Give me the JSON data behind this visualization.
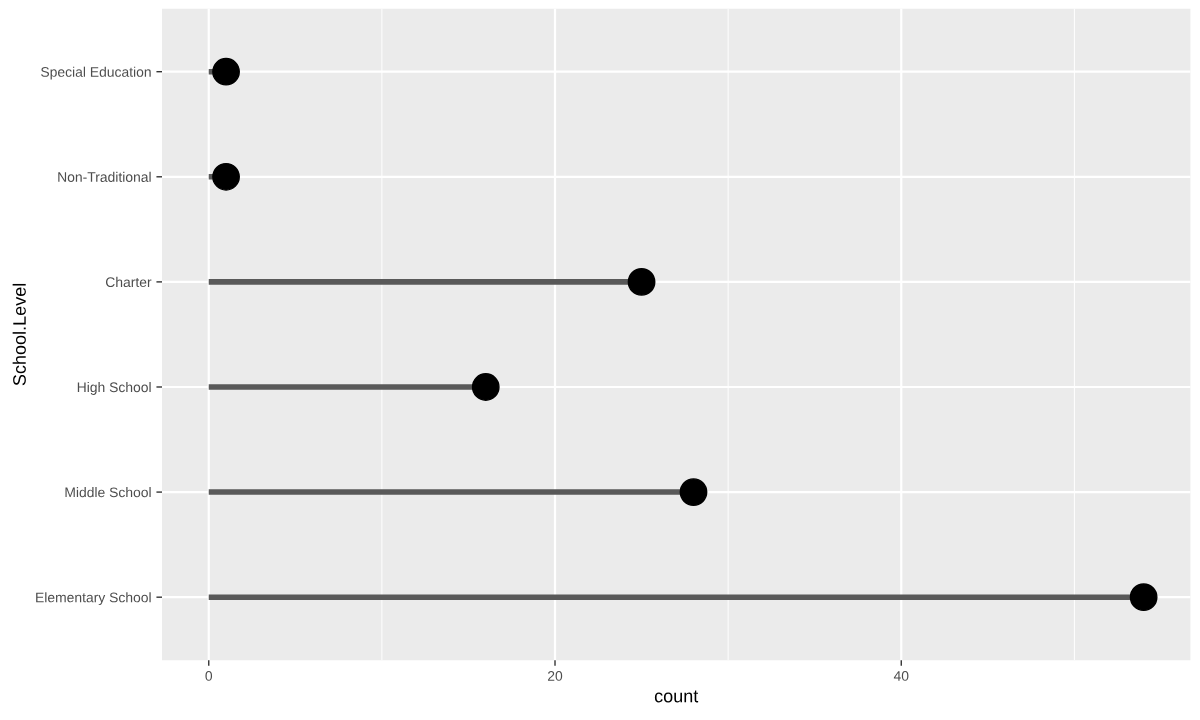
{
  "chart_data": {
    "type": "lollipop",
    "orientation": "horizontal",
    "xlabel": "count",
    "ylabel": "School.Level",
    "categories": [
      "Special Education",
      "Non-Traditional",
      "Charter",
      "High School",
      "Middle School",
      "Elementary School"
    ],
    "series": [
      {
        "color": "#000000",
        "values": [
          1,
          1,
          25,
          16,
          28,
          54
        ]
      }
    ],
    "xlim": [
      -2.7,
      56.7
    ],
    "xticks": [
      0,
      20,
      40
    ],
    "grid": true,
    "marker": "circle"
  }
}
